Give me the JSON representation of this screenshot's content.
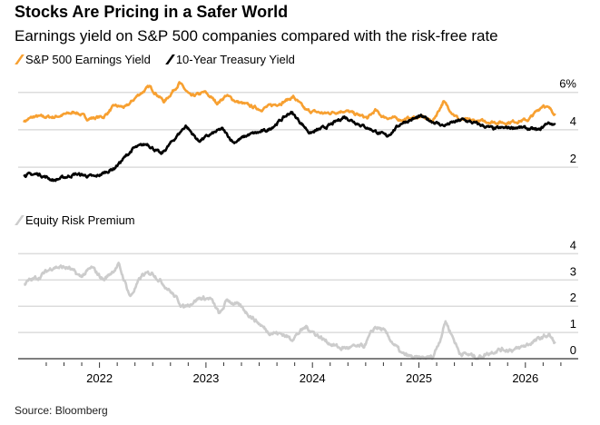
{
  "header": {
    "title": "Stocks Are Pricing in a Safer World",
    "subtitle": "Earnings yield on S&P 500 companies compared with the risk-free rate"
  },
  "source": "Source: Bloomberg",
  "chart_data": [
    {
      "type": "line",
      "legend": [
        "S&P 500 Earnings Yield",
        "10-Year Treasury Yield"
      ],
      "legend_placement": "top-left",
      "yticks": [
        {
          "v": 6,
          "label": "6%"
        },
        {
          "v": 4,
          "label": "4"
        },
        {
          "v": 2,
          "label": "2"
        }
      ],
      "ylim": [
        1,
        6.6
      ],
      "grid": true,
      "series": [
        {
          "name": "S&P 500 Earnings Yield",
          "color": "#f7a031",
          "points": [
            [
              2021.29,
              4.46
            ],
            [
              2021.39,
              4.7
            ],
            [
              2021.57,
              4.68
            ],
            [
              2021.78,
              4.95
            ],
            [
              2021.89,
              4.6
            ],
            [
              2022.04,
              4.7
            ],
            [
              2022.14,
              5.27
            ],
            [
              2022.25,
              5.2
            ],
            [
              2022.36,
              5.84
            ],
            [
              2022.47,
              6.3
            ],
            [
              2022.61,
              5.5
            ],
            [
              2022.75,
              6.5
            ],
            [
              2022.86,
              5.76
            ],
            [
              2022.99,
              6.0
            ],
            [
              2023.11,
              5.43
            ],
            [
              2023.19,
              5.84
            ],
            [
              2023.29,
              5.5
            ],
            [
              2023.51,
              5.1
            ],
            [
              2023.73,
              5.5
            ],
            [
              2023.82,
              5.76
            ],
            [
              2023.94,
              5.03
            ],
            [
              2024.12,
              4.87
            ],
            [
              2024.3,
              5.03
            ],
            [
              2024.52,
              4.62
            ],
            [
              2024.59,
              5.03
            ],
            [
              2024.66,
              4.7
            ],
            [
              2024.84,
              4.54
            ],
            [
              2025.02,
              4.7
            ],
            [
              2025.13,
              4.46
            ],
            [
              2025.23,
              5.5
            ],
            [
              2025.31,
              4.95
            ],
            [
              2025.38,
              4.54
            ],
            [
              2025.56,
              4.46
            ],
            [
              2025.81,
              4.38
            ],
            [
              2026.03,
              4.54
            ],
            [
              2026.17,
              5.35
            ],
            [
              2026.28,
              4.87
            ]
          ]
        },
        {
          "name": "10-Year Treasury Yield",
          "color": "#000000",
          "points": [
            [
              2021.29,
              1.58
            ],
            [
              2021.43,
              1.63
            ],
            [
              2021.57,
              1.3
            ],
            [
              2021.78,
              1.63
            ],
            [
              2021.96,
              1.47
            ],
            [
              2022.14,
              1.95
            ],
            [
              2022.32,
              3.0
            ],
            [
              2022.45,
              3.25
            ],
            [
              2022.58,
              2.68
            ],
            [
              2022.81,
              4.22
            ],
            [
              2022.93,
              3.4
            ],
            [
              2023.15,
              4.05
            ],
            [
              2023.26,
              3.33
            ],
            [
              2023.4,
              3.73
            ],
            [
              2023.58,
              3.97
            ],
            [
              2023.8,
              4.95
            ],
            [
              2023.98,
              3.82
            ],
            [
              2024.16,
              4.22
            ],
            [
              2024.3,
              4.7
            ],
            [
              2024.48,
              4.2
            ],
            [
              2024.7,
              3.65
            ],
            [
              2024.84,
              4.38
            ],
            [
              2025.02,
              4.7
            ],
            [
              2025.23,
              4.22
            ],
            [
              2025.41,
              4.54
            ],
            [
              2025.7,
              4.05
            ],
            [
              2025.92,
              4.14
            ],
            [
              2026.13,
              3.97
            ],
            [
              2026.21,
              4.38
            ],
            [
              2026.28,
              4.27
            ]
          ]
        }
      ]
    },
    {
      "type": "line",
      "legend": [
        "Equity Risk Premium"
      ],
      "legend_placement": "top-left",
      "yticks": [
        {
          "v": 4,
          "label": "4"
        },
        {
          "v": 3,
          "label": "3"
        },
        {
          "v": 2,
          "label": "2"
        },
        {
          "v": 1,
          "label": "1"
        },
        {
          "v": 0,
          "label": "0"
        }
      ],
      "ylim": [
        0,
        4
      ],
      "xticks": [
        "2022",
        "2023",
        "2024",
        "2025",
        "2026"
      ],
      "xlim": [
        2021.1,
        2026.5
      ],
      "grid": true,
      "series": [
        {
          "name": "Equity Risk Premium",
          "color": "#cccccc",
          "points": [
            [
              2021.29,
              2.88
            ],
            [
              2021.43,
              3.11
            ],
            [
              2021.57,
              3.51
            ],
            [
              2021.71,
              3.46
            ],
            [
              2021.82,
              3.11
            ],
            [
              2021.93,
              3.46
            ],
            [
              2022.04,
              3.0
            ],
            [
              2022.18,
              3.57
            ],
            [
              2022.29,
              2.36
            ],
            [
              2022.4,
              3.17
            ],
            [
              2022.5,
              3.28
            ],
            [
              2022.65,
              2.65
            ],
            [
              2022.79,
              1.96
            ],
            [
              2022.93,
              2.3
            ],
            [
              2023.04,
              2.3
            ],
            [
              2023.13,
              1.67
            ],
            [
              2023.2,
              2.25
            ],
            [
              2023.33,
              1.96
            ],
            [
              2023.44,
              1.56
            ],
            [
              2023.58,
              1.04
            ],
            [
              2023.73,
              0.92
            ],
            [
              2023.8,
              0.75
            ],
            [
              2023.94,
              1.21
            ],
            [
              2024.12,
              0.69
            ],
            [
              2024.26,
              0.4
            ],
            [
              2024.48,
              0.46
            ],
            [
              2024.59,
              1.21
            ],
            [
              2024.66,
              1.1
            ],
            [
              2024.84,
              0.17
            ],
            [
              2024.98,
              0.0
            ],
            [
              2025.13,
              0.06
            ],
            [
              2025.2,
              0.75
            ],
            [
              2025.25,
              1.44
            ],
            [
              2025.34,
              0.63
            ],
            [
              2025.38,
              0.23
            ],
            [
              2025.56,
              0.06
            ],
            [
              2025.74,
              0.35
            ],
            [
              2025.92,
              0.35
            ],
            [
              2026.1,
              0.69
            ],
            [
              2026.22,
              0.92
            ],
            [
              2026.28,
              0.58
            ]
          ]
        }
      ]
    }
  ]
}
